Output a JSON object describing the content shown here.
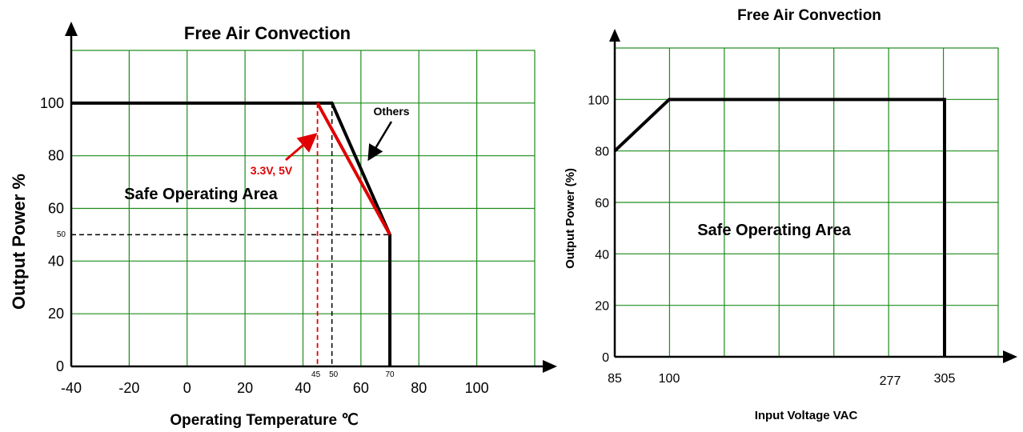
{
  "chart_data": [
    {
      "type": "line",
      "title": "Free Air Convection",
      "xlabel": "Operating Temperature ℃",
      "ylabel": "Output Power %",
      "x_ticks": [
        "-40",
        "-20",
        "0",
        "20",
        "40",
        "60",
        "80",
        "100"
      ],
      "y_ticks": [
        "0",
        "20",
        "40",
        "60",
        "80",
        "100"
      ],
      "xlim": [
        -40,
        120
      ],
      "ylim": [
        0,
        120
      ],
      "grid": true,
      "region_label": "Safe Operating Area",
      "series": [
        {
          "name": "Others",
          "color": "#000000",
          "x": [
            -40,
            50,
            70,
            70
          ],
          "y": [
            100,
            100,
            50,
            0
          ]
        },
        {
          "name": "3.3V, 5V",
          "color": "#e00000",
          "x": [
            45,
            70
          ],
          "y": [
            100,
            50
          ]
        }
      ],
      "annotations": {
        "y_marker_label": "50",
        "x_marker_labels": [
          "45",
          "50",
          "70"
        ]
      }
    },
    {
      "type": "line",
      "title": "Free Air Convection",
      "xlabel": "Input Voltage VAC",
      "ylabel": "Output Power (%)",
      "x_ticks": [
        "85",
        "100",
        "277",
        "305"
      ],
      "y_ticks": [
        "0",
        "20",
        "40",
        "60",
        "80",
        "100"
      ],
      "ylim": [
        0,
        120
      ],
      "grid": true,
      "region_label": "Safe Operating Area",
      "series": [
        {
          "color": "#000000",
          "x": [
            85,
            100,
            277,
            305,
            305
          ],
          "y": [
            80,
            100,
            100,
            100,
            0
          ]
        }
      ]
    }
  ]
}
